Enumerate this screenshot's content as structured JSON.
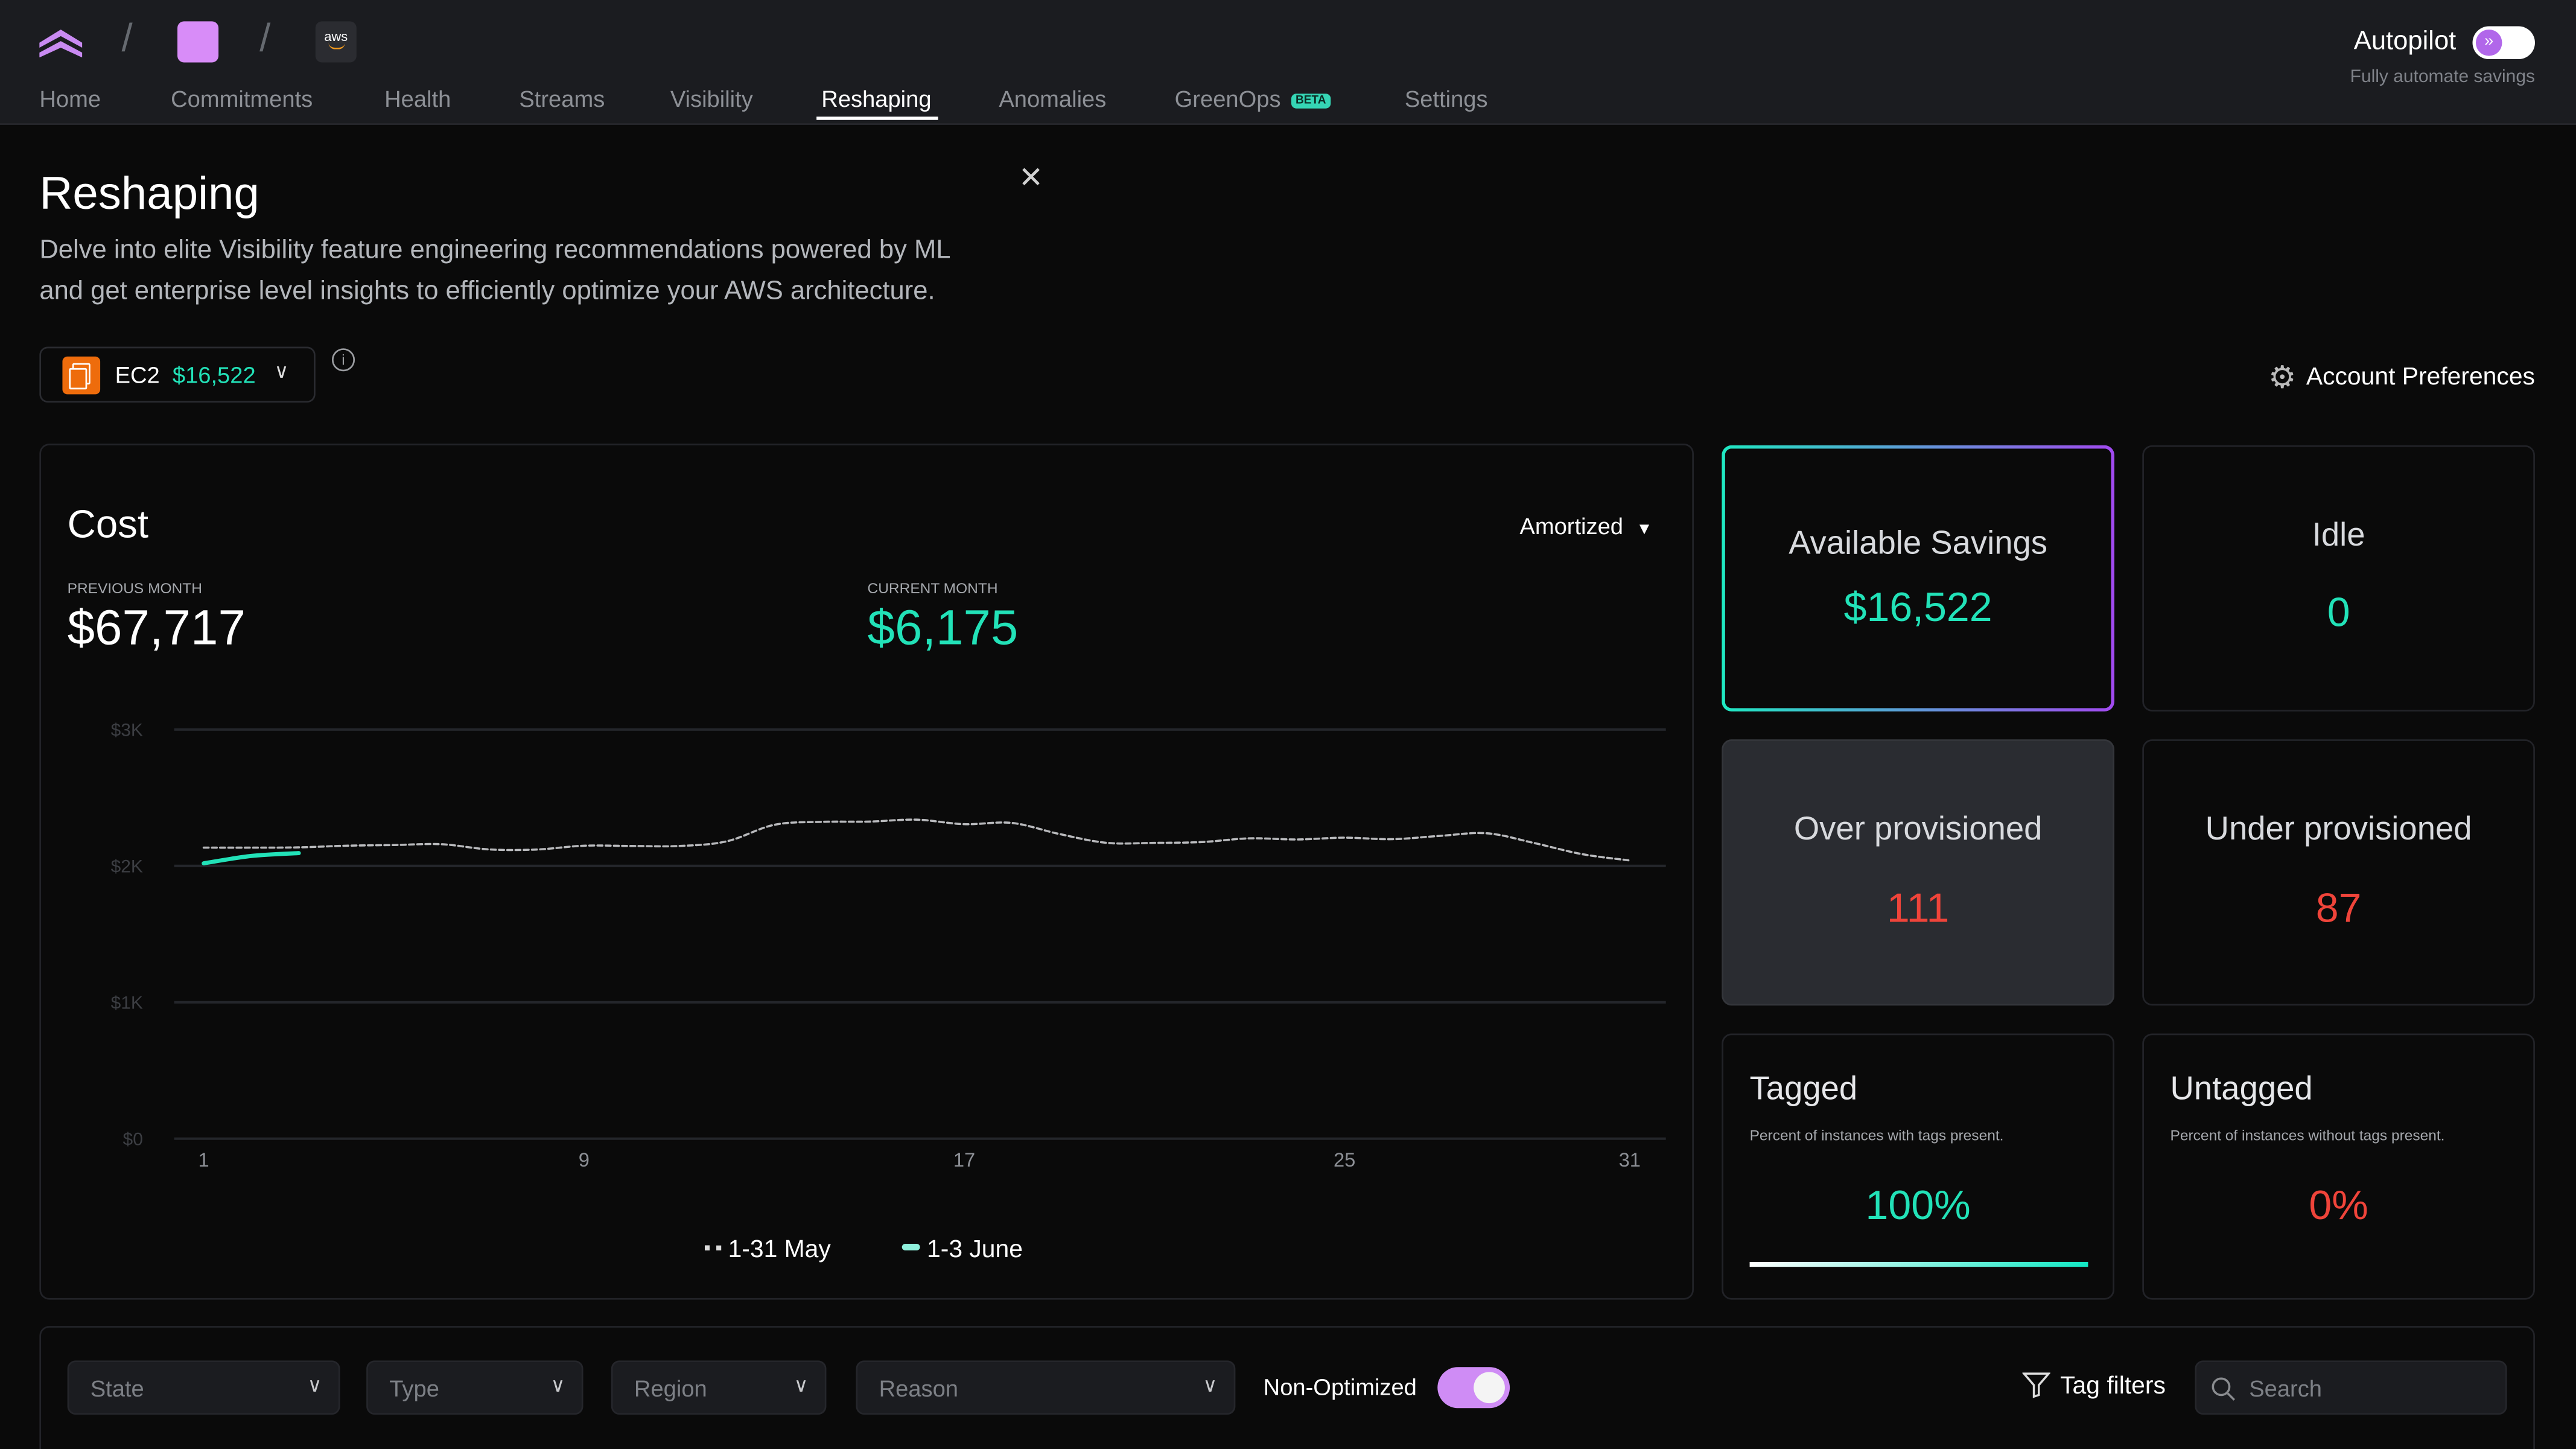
{
  "header": {
    "breadcrumb_icons": [
      "logo-chevrons-icon",
      "workspace-avatar",
      "aws-logo-icon"
    ],
    "aws_label": "aws",
    "tabs": [
      {
        "label": "Home",
        "active": false
      },
      {
        "label": "Commitments",
        "active": false
      },
      {
        "label": "Health",
        "active": false
      },
      {
        "label": "Streams",
        "active": false
      },
      {
        "label": "Visibility",
        "active": false
      },
      {
        "label": "Reshaping",
        "active": true
      },
      {
        "label": "Anomalies",
        "active": false
      },
      {
        "label": "GreenOps",
        "active": false,
        "badge": "BETA"
      },
      {
        "label": "Settings",
        "active": false
      }
    ],
    "autopilot": {
      "label": "Autopilot",
      "subtitle": "Fully automate savings",
      "enabled": false
    }
  },
  "page": {
    "title": "Reshaping",
    "description_line1": "Delve into elite Visibility feature engineering recommendations powered by ML",
    "description_line2": "and get enterprise level insights to efficiently optimize your AWS architecture.",
    "service_selector": {
      "service": "EC2",
      "amount": "$16,522"
    },
    "account_preferences": "Account Preferences"
  },
  "cost": {
    "title": "Cost",
    "mode": "Amortized",
    "previous_label": "PREVIOUS MONTH",
    "previous_value": "$67,717",
    "current_label": "CURRENT MONTH",
    "current_value": "$6,175"
  },
  "chart_data": {
    "type": "line",
    "x_ticks": [
      "1",
      "9",
      "17",
      "25",
      "31"
    ],
    "y_ticks": [
      "$0",
      "$1K",
      "$2K",
      "$3K"
    ],
    "ylim": [
      0,
      3000
    ],
    "xlim": [
      1,
      31
    ],
    "grid": true,
    "legend_position": "bottom",
    "series": [
      {
        "name": "1-31 May",
        "style": "dashed",
        "color": "#b8b9bc",
        "x": [
          1,
          2,
          3,
          4,
          5,
          6,
          7,
          8,
          9,
          10,
          11,
          12,
          13,
          14,
          15,
          16,
          17,
          18,
          19,
          20,
          21,
          22,
          23,
          24,
          25,
          26,
          27,
          28,
          29,
          30,
          31
        ],
        "values": [
          2134,
          2134,
          2136,
          2148,
          2153,
          2159,
          2121,
          2120,
          2148,
          2146,
          2146,
          2180,
          2301,
          2323,
          2325,
          2339,
          2306,
          2315,
          2234,
          2169,
          2169,
          2175,
          2202,
          2194,
          2207,
          2196,
          2220,
          2239,
          2167,
          2086,
          2040
        ]
      },
      {
        "name": "1-3 June",
        "style": "solid",
        "color": "#22e2b8",
        "x": [
          1,
          2,
          3
        ],
        "values": [
          2019,
          2073,
          2094
        ]
      }
    ]
  },
  "stats": {
    "available_savings": {
      "label": "Available Savings",
      "value": "$16,522"
    },
    "idle": {
      "label": "Idle",
      "value": "0"
    },
    "over_provisioned": {
      "label": "Over provisioned",
      "value": "111"
    },
    "under_provisioned": {
      "label": "Under provisioned",
      "value": "87"
    },
    "tagged": {
      "label": "Tagged",
      "description": "Percent of instances with tags present.",
      "value": "100%",
      "progress": 100
    },
    "untagged": {
      "label": "Untagged",
      "description": "Percent of instances without tags present.",
      "value": "0%"
    }
  },
  "filters": {
    "state": "State",
    "type": "Type",
    "region": "Region",
    "reason": "Reason",
    "non_optimized": {
      "label": "Non-Optimized",
      "enabled": true
    },
    "tag_filters": "Tag filters",
    "search_placeholder": "Search"
  },
  "colors": {
    "accent_green": "#22e2b8",
    "accent_purple": "#cf8cf5",
    "danger": "#f0443a",
    "header_bg": "#1b1c20"
  }
}
